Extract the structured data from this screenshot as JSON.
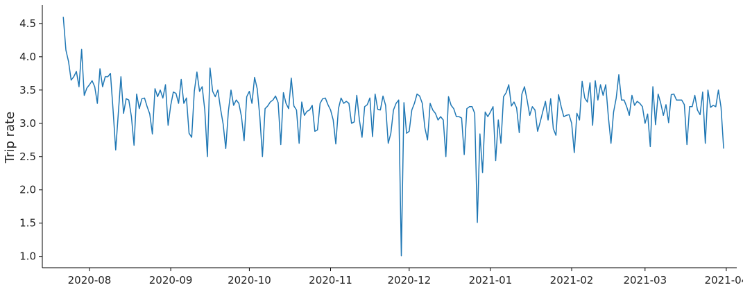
{
  "chart_data": {
    "type": "line",
    "title": "",
    "xlabel": "",
    "ylabel": "Trip rate",
    "x_start": "2020-07-22",
    "x_end": "2021-03-28",
    "xlim": [
      "2020-07-14",
      "2021-04-05"
    ],
    "ylim": [
      0.83,
      4.78
    ],
    "x_ticks": [
      "2020-08-01",
      "2020-09-01",
      "2020-10-01",
      "2020-11-01",
      "2020-12-01",
      "2021-01-01",
      "2021-02-01",
      "2021-03-01",
      "2021-04-01"
    ],
    "x_tick_labels": [
      "2020-08",
      "2020-09",
      "2020-10",
      "2020-11",
      "2020-12",
      "2021-01",
      "2021-02",
      "2021-03",
      "2021-04"
    ],
    "y_ticks": [
      1.0,
      1.5,
      2.0,
      2.5,
      3.0,
      3.5,
      4.0,
      4.5
    ],
    "y_tick_labels": [
      "1.0",
      "1.5",
      "2.0",
      "2.5",
      "3.0",
      "3.5",
      "4.0",
      "4.5"
    ],
    "grid": false,
    "series": [
      {
        "color": "#1f77b4",
        "values": [
          4.6,
          4.1,
          3.93,
          3.65,
          3.7,
          3.78,
          3.55,
          4.11,
          3.42,
          3.53,
          3.58,
          3.64,
          3.55,
          3.3,
          3.82,
          3.55,
          3.7,
          3.7,
          3.75,
          3.2,
          2.6,
          3.15,
          3.7,
          3.15,
          3.37,
          3.35,
          3.1,
          2.67,
          3.44,
          3.22,
          3.37,
          3.38,
          3.25,
          3.14,
          2.84,
          3.52,
          3.4,
          3.5,
          3.38,
          3.58,
          2.97,
          3.27,
          3.47,
          3.45,
          3.3,
          3.66,
          3.3,
          3.38,
          2.85,
          2.79,
          3.48,
          3.77,
          3.48,
          3.55,
          3.2,
          2.5,
          3.83,
          3.48,
          3.4,
          3.5,
          3.22,
          2.99,
          2.62,
          3.18,
          3.5,
          3.27,
          3.35,
          3.3,
          3.1,
          2.74,
          3.4,
          3.48,
          3.3,
          3.69,
          3.52,
          3.1,
          2.5,
          3.22,
          3.26,
          3.32,
          3.35,
          3.41,
          3.31,
          2.68,
          3.46,
          3.3,
          3.22,
          3.68,
          3.26,
          3.2,
          2.7,
          3.32,
          3.12,
          3.18,
          3.2,
          3.27,
          2.88,
          2.9,
          3.3,
          3.37,
          3.38,
          3.28,
          3.2,
          3.05,
          2.69,
          3.22,
          3.38,
          3.3,
          3.33,
          3.3,
          3.0,
          3.02,
          3.42,
          3.05,
          2.79,
          3.25,
          3.28,
          3.38,
          2.8,
          3.44,
          3.21,
          3.2,
          3.41,
          3.27,
          2.7,
          2.85,
          3.2,
          3.3,
          3.35,
          1.01,
          3.31,
          2.85,
          2.88,
          3.2,
          3.3,
          3.44,
          3.41,
          3.3,
          2.93,
          2.75,
          3.3,
          3.2,
          3.15,
          3.05,
          3.1,
          3.05,
          2.5,
          3.4,
          3.27,
          3.22,
          3.1,
          3.1,
          3.08,
          2.53,
          3.22,
          3.25,
          3.25,
          3.15,
          1.51,
          2.84,
          2.26,
          3.17,
          3.1,
          3.17,
          3.25,
          2.44,
          3.05,
          2.7,
          3.4,
          3.46,
          3.58,
          3.26,
          3.32,
          3.23,
          2.86,
          3.44,
          3.55,
          3.35,
          3.12,
          3.25,
          3.2,
          2.88,
          3.02,
          3.18,
          3.33,
          3.05,
          3.37,
          2.92,
          2.82,
          3.43,
          3.25,
          3.1,
          3.12,
          3.13,
          3.0,
          2.56,
          3.15,
          3.05,
          3.63,
          3.38,
          3.32,
          3.61,
          2.97,
          3.64,
          3.35,
          3.58,
          3.42,
          3.58,
          3.1,
          2.7,
          3.17,
          3.38,
          3.73,
          3.35,
          3.35,
          3.25,
          3.12,
          3.42,
          3.27,
          3.33,
          3.3,
          3.25,
          3.0,
          3.14,
          2.65,
          3.55,
          2.98,
          3.44,
          3.3,
          3.12,
          3.28,
          3.01,
          3.43,
          3.44,
          3.35,
          3.35,
          3.35,
          3.28,
          2.68,
          3.25,
          3.25,
          3.42,
          3.2,
          3.13,
          3.47,
          2.7,
          3.5,
          3.24,
          3.27,
          3.25,
          3.5,
          3.24,
          2.62
        ]
      }
    ]
  }
}
